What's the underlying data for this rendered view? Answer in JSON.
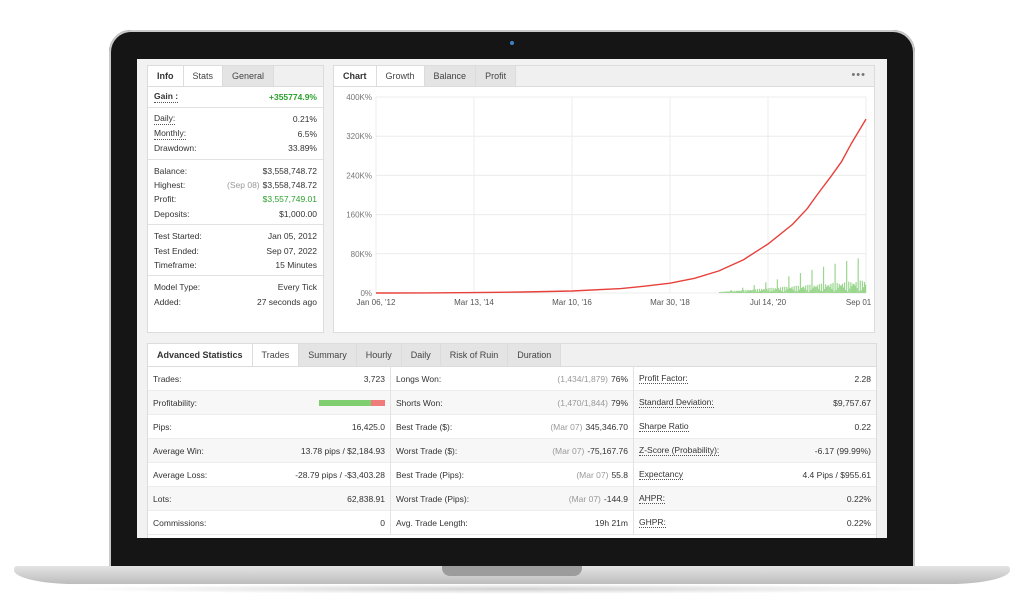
{
  "info": {
    "tabs": [
      "Info",
      "Stats",
      "General"
    ],
    "gain_label": "Gain :",
    "gain_value": "+355774.9%",
    "rows": [
      {
        "label": "Daily:",
        "value": "0.21%"
      },
      {
        "label": "Monthly:",
        "value": "6.5%"
      },
      {
        "label": "Drawdown:",
        "value": "33.89%"
      },
      {
        "label": "Balance:",
        "value": "$3,558,748.72"
      },
      {
        "label": "Highest:",
        "note": "(Sep 08)",
        "value": "$3,558,748.72"
      },
      {
        "label": "Profit:",
        "value": "$3,557,749.01"
      },
      {
        "label": "Deposits:",
        "value": "$1,000.00"
      },
      {
        "label": "Test Started:",
        "value": "Jan 05, 2012"
      },
      {
        "label": "Test Ended:",
        "value": "Sep 07, 2022"
      },
      {
        "label": "Timeframe:",
        "value": "15 Minutes"
      },
      {
        "label": "Model Type:",
        "value": "Every Tick"
      },
      {
        "label": "Added:",
        "value": "27 seconds ago"
      }
    ]
  },
  "chart": {
    "tabs": [
      "Chart",
      "Growth",
      "Balance",
      "Profit"
    ],
    "menu": "•••"
  },
  "chart_data": {
    "type": "line",
    "xlabels": [
      "Jan 06, '12",
      "Mar 13, '14",
      "Mar 10, '16",
      "Mar 30, '18",
      "Jul 14, '20",
      "Sep 01, '22"
    ],
    "ytick_labels": [
      "0%",
      "80K%",
      "160K%",
      "240K%",
      "320K%",
      "400K%"
    ],
    "ylim": [
      0,
      400000
    ],
    "grid": true,
    "series": [
      {
        "color": "#e8403a",
        "x": [
          0,
          0.1,
          0.2,
          0.3,
          0.4,
          0.5,
          0.55,
          0.6,
          0.65,
          0.7,
          0.75,
          0.8,
          0.85,
          0.88,
          0.9,
          0.93,
          0.95,
          0.97,
          1.0
        ],
        "y": [
          0,
          300,
          900,
          2000,
          4000,
          9000,
          14000,
          20000,
          30000,
          45000,
          68000,
          100000,
          140000,
          172000,
          200000,
          240000,
          268000,
          305000,
          355000
        ]
      }
    ],
    "bars_color": "#9bd68f"
  },
  "stats": {
    "tabs": [
      "Advanced Statistics",
      "Trades",
      "Summary",
      "Hourly",
      "Daily",
      "Risk of Ruin",
      "Duration"
    ],
    "col1": [
      {
        "label": "Trades:",
        "value": "3,723"
      },
      {
        "label": "Profitability:",
        "value": ""
      },
      {
        "label": "Pips:",
        "value": "16,425.0"
      },
      {
        "label": "Average Win:",
        "value": "13.78 pips / $2,184.93"
      },
      {
        "label": "Average Loss:",
        "value": "-28.79 pips / -$3,403.28"
      },
      {
        "label": "Lots:",
        "value": "62,838.91"
      },
      {
        "label": "Commissions:",
        "value": "0"
      }
    ],
    "profitability": 0.79,
    "col2": [
      {
        "label": "Longs Won:",
        "note": "(1,434/1,879)",
        "value": "76%"
      },
      {
        "label": "Shorts Won:",
        "note": "(1,470/1,844)",
        "value": "79%"
      },
      {
        "label": "Best Trade ($):",
        "note": "(Mar 07)",
        "value": "345,346.70"
      },
      {
        "label": "Worst Trade ($):",
        "note": "(Mar 07)",
        "value": "-75,167.76"
      },
      {
        "label": "Best Trade (Pips):",
        "note": "(Mar 07)",
        "value": "55.8"
      },
      {
        "label": "Worst Trade (Pips):",
        "note": "(Mar 07)",
        "value": "-144.9"
      },
      {
        "label": "Avg. Trade Length:",
        "note": "",
        "value": "19h 21m"
      }
    ],
    "col3": [
      {
        "label": "Profit Factor:",
        "value": "2.28"
      },
      {
        "label": "Standard Deviation:",
        "value": "$9,757.67"
      },
      {
        "label": "Sharpe Ratio",
        "value": "0.22"
      },
      {
        "label": "Z-Score (Probability):",
        "value": "-6.17 (99.99%)"
      },
      {
        "label": "Expectancy",
        "value": "4.4 Pips / $955.61"
      },
      {
        "label": "AHPR:",
        "value": "0.22%"
      },
      {
        "label": "GHPR:",
        "value": "0.22%"
      }
    ]
  }
}
